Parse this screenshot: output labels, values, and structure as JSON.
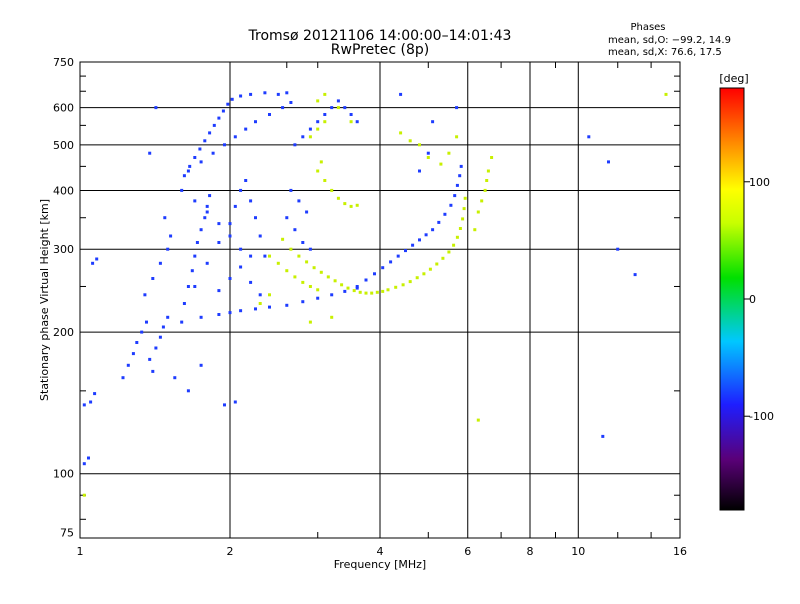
{
  "chart_data": {
    "type": "scatter",
    "title": "Tromsø 20121106 14:00:00–14:01:43",
    "subtitle": "RwPretec (8p)",
    "xlabel": "Frequency [MHz]",
    "ylabel": "Stationary phase Virtual Height [km]",
    "x_scale": "log",
    "y_scale": "log",
    "xlim": [
      1,
      16
    ],
    "ylim": [
      73,
      750
    ],
    "x_ticks": [
      1,
      2,
      4,
      6,
      8,
      10,
      16
    ],
    "x_tick_labels": [
      "1",
      "2",
      "4",
      "6",
      "8",
      "10",
      "16"
    ],
    "y_ticks": [
      75,
      100,
      200,
      300,
      400,
      500,
      600,
      750
    ],
    "y_tick_labels": [
      "75",
      "100",
      "200",
      "300",
      "400",
      "500",
      "600",
      "750"
    ],
    "grid": true,
    "legend": {
      "title": "Phases",
      "lines": [
        "mean, sd,O: −99.2, 14.9",
        "mean, sd,X:  76.6, 17.5"
      ]
    },
    "colorbar": {
      "label": "[deg]",
      "range": [
        -180,
        180
      ],
      "ticks": [
        100,
        0,
        -100
      ],
      "tick_labels": [
        "100",
        "0",
        "-100"
      ],
      "colors": [
        "#000000",
        "#5a0078",
        "#1e1eff",
        "#00c8ff",
        "#00e000",
        "#c8ff00",
        "#ffff00",
        "#ff8000",
        "#ff0000"
      ]
    },
    "series": [
      {
        "name": "O-mode",
        "phase": -99.2,
        "color": "#1e3cff",
        "points": [
          [
            1.02,
            140
          ],
          [
            1.05,
            142
          ],
          [
            1.07,
            148
          ],
          [
            1.02,
            105
          ],
          [
            1.04,
            108
          ],
          [
            1.06,
            280
          ],
          [
            1.08,
            286
          ],
          [
            1.22,
            160
          ],
          [
            1.25,
            170
          ],
          [
            1.28,
            180
          ],
          [
            1.3,
            190
          ],
          [
            1.33,
            200
          ],
          [
            1.36,
            210
          ],
          [
            1.38,
            175
          ],
          [
            1.4,
            165
          ],
          [
            1.42,
            185
          ],
          [
            1.45,
            195
          ],
          [
            1.47,
            205
          ],
          [
            1.5,
            215
          ],
          [
            1.35,
            240
          ],
          [
            1.4,
            260
          ],
          [
            1.45,
            280
          ],
          [
            1.5,
            300
          ],
          [
            1.52,
            320
          ],
          [
            1.48,
            350
          ],
          [
            1.42,
            600
          ],
          [
            1.38,
            480
          ],
          [
            1.6,
            210
          ],
          [
            1.62,
            230
          ],
          [
            1.65,
            250
          ],
          [
            1.68,
            270
          ],
          [
            1.7,
            290
          ],
          [
            1.72,
            310
          ],
          [
            1.75,
            330
          ],
          [
            1.78,
            350
          ],
          [
            1.8,
            370
          ],
          [
            1.82,
            390
          ],
          [
            1.62,
            430
          ],
          [
            1.66,
            450
          ],
          [
            1.7,
            470
          ],
          [
            1.74,
            490
          ],
          [
            1.78,
            510
          ],
          [
            1.82,
            530
          ],
          [
            1.86,
            550
          ],
          [
            1.9,
            570
          ],
          [
            1.94,
            590
          ],
          [
            1.98,
            610
          ],
          [
            2.02,
            625
          ],
          [
            2.1,
            635
          ],
          [
            2.2,
            640
          ],
          [
            2.35,
            645
          ],
          [
            2.5,
            640
          ],
          [
            2.6,
            645
          ],
          [
            1.65,
            440
          ],
          [
            1.75,
            460
          ],
          [
            1.85,
            480
          ],
          [
            1.95,
            500
          ],
          [
            2.05,
            520
          ],
          [
            2.15,
            540
          ],
          [
            2.25,
            560
          ],
          [
            2.4,
            580
          ],
          [
            2.55,
            600
          ],
          [
            2.65,
            615
          ],
          [
            1.75,
            215
          ],
          [
            1.9,
            218
          ],
          [
            2.0,
            220
          ],
          [
            2.1,
            222
          ],
          [
            2.25,
            224
          ],
          [
            2.4,
            226
          ],
          [
            2.6,
            228
          ],
          [
            2.8,
            232
          ],
          [
            3.0,
            236
          ],
          [
            3.2,
            240
          ],
          [
            3.4,
            244
          ],
          [
            3.6,
            248
          ],
          [
            1.7,
            250
          ],
          [
            1.8,
            280
          ],
          [
            1.9,
            310
          ],
          [
            2.0,
            340
          ],
          [
            2.05,
            370
          ],
          [
            2.1,
            400
          ],
          [
            2.15,
            420
          ],
          [
            2.2,
            380
          ],
          [
            2.25,
            350
          ],
          [
            2.3,
            320
          ],
          [
            2.35,
            290
          ],
          [
            1.6,
            400
          ],
          [
            1.7,
            380
          ],
          [
            1.8,
            360
          ],
          [
            1.9,
            340
          ],
          [
            2.0,
            320
          ],
          [
            2.1,
            300
          ],
          [
            2.2,
            290
          ],
          [
            1.9,
            245
          ],
          [
            2.0,
            260
          ],
          [
            2.1,
            275
          ],
          [
            2.2,
            255
          ],
          [
            2.3,
            240
          ],
          [
            2.6,
            350
          ],
          [
            2.7,
            330
          ],
          [
            2.8,
            310
          ],
          [
            2.9,
            300
          ],
          [
            2.65,
            400
          ],
          [
            2.75,
            380
          ],
          [
            2.85,
            360
          ],
          [
            2.7,
            500
          ],
          [
            2.8,
            520
          ],
          [
            2.9,
            540
          ],
          [
            3.0,
            560
          ],
          [
            3.1,
            580
          ],
          [
            3.2,
            600
          ],
          [
            3.3,
            620
          ],
          [
            3.4,
            600
          ],
          [
            3.5,
            580
          ],
          [
            3.6,
            560
          ],
          [
            3.6,
            250
          ],
          [
            3.75,
            258
          ],
          [
            3.9,
            266
          ],
          [
            4.05,
            274
          ],
          [
            4.2,
            282
          ],
          [
            4.35,
            290
          ],
          [
            4.5,
            298
          ],
          [
            4.65,
            306
          ],
          [
            4.8,
            314
          ],
          [
            4.95,
            322
          ],
          [
            5.1,
            330
          ],
          [
            5.25,
            342
          ],
          [
            5.4,
            356
          ],
          [
            5.55,
            372
          ],
          [
            5.65,
            390
          ],
          [
            5.72,
            410
          ],
          [
            5.78,
            430
          ],
          [
            5.82,
            450
          ],
          [
            4.8,
            440
          ],
          [
            5.0,
            480
          ],
          [
            5.1,
            560
          ],
          [
            5.7,
            600
          ],
          [
            4.4,
            640
          ],
          [
            10.5,
            520
          ],
          [
            11.5,
            460
          ],
          [
            11.2,
            120
          ],
          [
            12.0,
            300
          ],
          [
            13.0,
            265
          ],
          [
            1.95,
            140
          ],
          [
            2.05,
            142
          ],
          [
            1.55,
            160
          ],
          [
            1.65,
            150
          ],
          [
            1.75,
            170
          ]
        ]
      },
      {
        "name": "X-mode",
        "phase": 76.6,
        "color": "#c8f000",
        "points": [
          [
            2.55,
            315
          ],
          [
            2.65,
            300
          ],
          [
            2.75,
            290
          ],
          [
            2.85,
            282
          ],
          [
            2.95,
            274
          ],
          [
            3.05,
            268
          ],
          [
            3.15,
            262
          ],
          [
            3.25,
            257
          ],
          [
            3.35,
            252
          ],
          [
            3.45,
            248
          ],
          [
            3.55,
            245
          ],
          [
            3.65,
            243
          ],
          [
            3.75,
            242
          ],
          [
            3.85,
            242
          ],
          [
            3.95,
            243
          ],
          [
            4.05,
            244
          ],
          [
            4.15,
            246
          ],
          [
            4.3,
            249
          ],
          [
            4.45,
            252
          ],
          [
            4.6,
            256
          ],
          [
            4.75,
            261
          ],
          [
            4.9,
            266
          ],
          [
            5.05,
            272
          ],
          [
            5.2,
            279
          ],
          [
            5.35,
            287
          ],
          [
            5.5,
            296
          ],
          [
            5.62,
            306
          ],
          [
            5.72,
            318
          ],
          [
            5.8,
            332
          ],
          [
            5.86,
            348
          ],
          [
            5.9,
            366
          ],
          [
            5.93,
            385
          ],
          [
            2.4,
            290
          ],
          [
            2.5,
            280
          ],
          [
            2.6,
            270
          ],
          [
            2.7,
            262
          ],
          [
            2.8,
            255
          ],
          [
            2.9,
            250
          ],
          [
            3.0,
            246
          ],
          [
            3.1,
            420
          ],
          [
            3.2,
            400
          ],
          [
            3.3,
            385
          ],
          [
            3.4,
            375
          ],
          [
            3.5,
            370
          ],
          [
            3.6,
            372
          ],
          [
            3.0,
            440
          ],
          [
            3.05,
            460
          ],
          [
            2.9,
            520
          ],
          [
            3.0,
            540
          ],
          [
            3.1,
            560
          ],
          [
            3.0,
            620
          ],
          [
            3.1,
            640
          ],
          [
            3.3,
            600
          ],
          [
            3.5,
            560
          ],
          [
            4.4,
            530
          ],
          [
            4.6,
            510
          ],
          [
            4.8,
            500
          ],
          [
            5.0,
            470
          ],
          [
            5.3,
            455
          ],
          [
            5.5,
            480
          ],
          [
            5.7,
            520
          ],
          [
            6.3,
            360
          ],
          [
            6.4,
            380
          ],
          [
            6.5,
            400
          ],
          [
            6.55,
            420
          ],
          [
            6.6,
            440
          ],
          [
            6.7,
            470
          ],
          [
            6.2,
            330
          ],
          [
            6.3,
            130
          ],
          [
            2.9,
            210
          ],
          [
            3.2,
            215
          ],
          [
            2.4,
            240
          ],
          [
            2.3,
            230
          ],
          [
            15.0,
            640
          ],
          [
            1.02,
            90
          ]
        ]
      }
    ]
  }
}
